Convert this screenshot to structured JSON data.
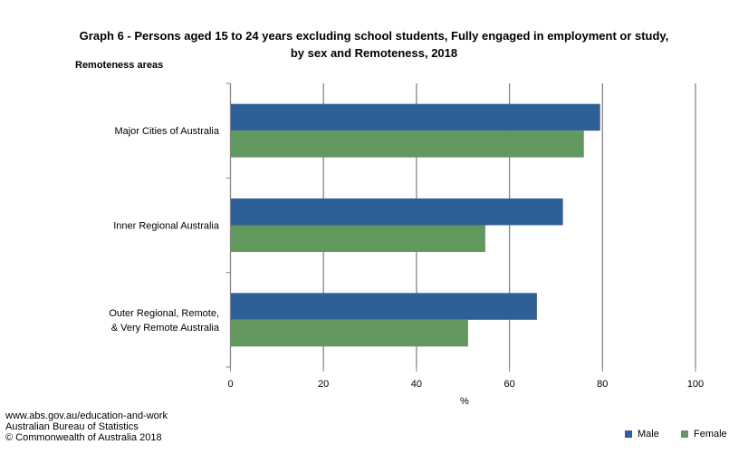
{
  "chart_data": {
    "type": "bar",
    "orientation": "horizontal",
    "title": "Graph 6 - Persons aged 15  to 24 years excluding school students,  Fully engaged in employment or study,",
    "subtitle": "by sex and Remoteness, 2018",
    "ylabel": "Remoteness areas",
    "xlabel": "%",
    "xlim": [
      0,
      100
    ],
    "xticks": [
      0,
      20,
      40,
      60,
      80,
      100
    ],
    "grid": true,
    "legend_position": "bottom-right",
    "categories": [
      [
        "Major Cities of Australia"
      ],
      [
        "Inner Regional Australia"
      ],
      [
        "Outer Regional, Remote,",
        "& Very Remote Australia"
      ]
    ],
    "series": [
      {
        "name": "Male",
        "color": "#2E5F96",
        "values": [
          79.4,
          71.4,
          65.8
        ]
      },
      {
        "name": "Female",
        "color": "#62985E",
        "values": [
          75.9,
          54.7,
          51.0
        ]
      }
    ]
  },
  "footer": {
    "line1": "www.abs.gov.au/education-and-work",
    "line2": "Australian Bureau of Statistics",
    "line3": "© Commonwealth of Australia 2018"
  }
}
